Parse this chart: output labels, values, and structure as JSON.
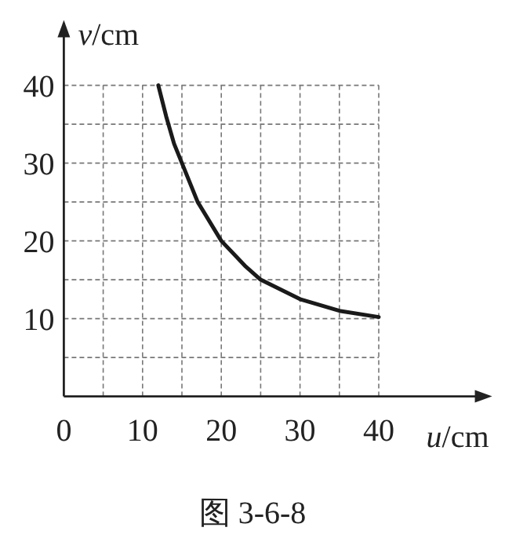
{
  "chart_data": {
    "type": "line",
    "xlabel": "*u*/cm",
    "ylabel": "*v*/cm",
    "annotations": [
      "图 3-6-8"
    ],
    "x": [
      12,
      13,
      14,
      15,
      17,
      20,
      23,
      25,
      30,
      35,
      40
    ],
    "series": [
      {
        "color": "#1a1a1a",
        "values": [
          40,
          36,
          32.5,
          30,
          25,
          20,
          16.8,
          15,
          12.5,
          11,
          10.2
        ]
      }
    ],
    "xlim": [
      0,
      54
    ],
    "ylim": [
      0,
      48
    ],
    "xticks": [
      0,
      {
        "value": 5,
        "label": null
      },
      10,
      {
        "value": 15,
        "label": null
      },
      20,
      {
        "value": 25,
        "label": null
      },
      30,
      {
        "value": 35,
        "label": null
      },
      40
    ],
    "yticks": [
      {
        "value": 0,
        "label": null
      },
      {
        "value": 5,
        "label": null
      },
      10,
      {
        "value": 15,
        "label": null
      },
      20,
      {
        "value": 25,
        "label": null
      },
      30,
      {
        "value": 35,
        "label": null
      },
      40
    ],
    "grid": true,
    "marker": "none",
    "line_style": "solid"
  }
}
